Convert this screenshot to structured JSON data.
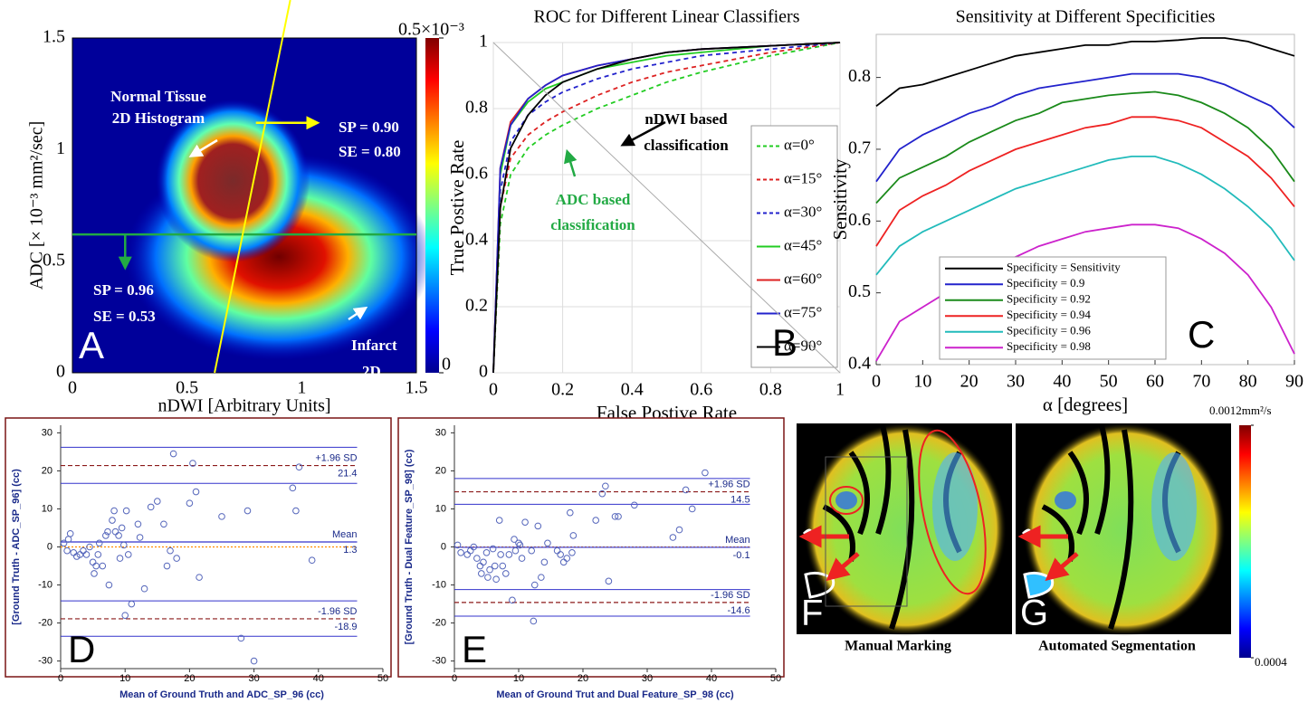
{
  "chart_data": [
    {
      "type": "heatmap",
      "panel_label": "A",
      "xlabel": "nDWI [Arbitrary Units]",
      "ylabel": "ADC [× 10⁻³ mm²/sec]",
      "xlim": [
        0,
        1.5
      ],
      "xticks": [
        0,
        0.5,
        1,
        1.5
      ],
      "ylim": [
        0,
        1.5
      ],
      "yticks": [
        0,
        0.5,
        1,
        1.5
      ],
      "colorbar": {
        "lim": [
          0,
          0.0005
        ],
        "ticks": [
          {
            "value": 0,
            "label": "0"
          },
          {
            "value": 0.0005,
            "label": "0.5×10⁻³"
          }
        ]
      },
      "annotations": [
        "Normal Tissue",
        "2D Histogram",
        "SP = 0.90",
        "SE = 0.80",
        "SP = 0.96",
        "SE = 0.53",
        "Infarct",
        "2D"
      ]
    },
    {
      "type": "line",
      "panel_label": "B",
      "title": "ROC for Different Linear Classifiers",
      "xlabel": "False Postive Rate",
      "ylabel": "True Postive Rate",
      "xlim": [
        0,
        1
      ],
      "xticks": [
        0,
        0.2,
        0.4,
        0.6,
        0.8,
        1
      ],
      "ylim": [
        0,
        1
      ],
      "yticks": [
        0,
        0.2,
        0.4,
        0.6,
        0.8,
        1
      ],
      "grid": true,
      "legend": "lower right",
      "annotations": [
        "nDWI based",
        "classification",
        "ADC based",
        "classification"
      ],
      "x": [
        0,
        0.02,
        0.05,
        0.1,
        0.15,
        0.2,
        0.3,
        0.4,
        0.5,
        0.6,
        0.8,
        1
      ],
      "series": [
        {
          "name": "α=0°",
          "color": "#22cc22",
          "dash": true,
          "values": [
            0,
            0.45,
            0.6,
            0.68,
            0.72,
            0.75,
            0.8,
            0.84,
            0.88,
            0.91,
            0.96,
            1
          ]
        },
        {
          "name": "α=15°",
          "color": "#dd2222",
          "dash": true,
          "values": [
            0,
            0.5,
            0.65,
            0.72,
            0.76,
            0.79,
            0.84,
            0.88,
            0.91,
            0.93,
            0.97,
            1
          ]
        },
        {
          "name": "α=30°",
          "color": "#2222cc",
          "dash": true,
          "values": [
            0,
            0.55,
            0.7,
            0.78,
            0.82,
            0.85,
            0.89,
            0.92,
            0.94,
            0.96,
            0.98,
            1
          ]
        },
        {
          "name": "α=45°",
          "color": "#22cc22",
          "dash": false,
          "values": [
            0,
            0.6,
            0.75,
            0.82,
            0.86,
            0.88,
            0.92,
            0.94,
            0.96,
            0.97,
            0.99,
            1
          ]
        },
        {
          "name": "α=60°",
          "color": "#dd2222",
          "dash": false,
          "values": [
            0,
            0.62,
            0.76,
            0.83,
            0.87,
            0.9,
            0.93,
            0.95,
            0.97,
            0.98,
            0.99,
            1
          ]
        },
        {
          "name": "α=75°",
          "color": "#2222cc",
          "dash": false,
          "values": [
            0,
            0.62,
            0.75,
            0.83,
            0.87,
            0.9,
            0.93,
            0.95,
            0.97,
            0.98,
            0.99,
            1
          ]
        },
        {
          "name": "α=90°",
          "color": "#000000",
          "dash": false,
          "values": [
            0,
            0.5,
            0.68,
            0.78,
            0.84,
            0.88,
            0.92,
            0.95,
            0.97,
            0.98,
            0.99,
            1
          ]
        }
      ]
    },
    {
      "type": "line",
      "panel_label": "C",
      "title": "Sensitivity at Different Specificities",
      "xlabel": "α [degrees]",
      "ylabel": "Sensitivity",
      "xlim": [
        0,
        90
      ],
      "xticks": [
        0,
        10,
        20,
        30,
        40,
        50,
        60,
        70,
        80,
        90
      ],
      "ylim": [
        0.4,
        0.86
      ],
      "yticks": [
        0.4,
        0.5,
        0.6,
        0.7,
        0.8
      ],
      "grid": false,
      "legend": "lower left",
      "x": [
        0,
        5,
        10,
        15,
        20,
        25,
        30,
        35,
        40,
        45,
        50,
        55,
        60,
        65,
        70,
        75,
        80,
        85,
        90
      ],
      "series": [
        {
          "name": "Specificity = Sensitivity",
          "color": "#000000",
          "values": [
            0.76,
            0.785,
            0.79,
            0.8,
            0.81,
            0.82,
            0.83,
            0.835,
            0.84,
            0.845,
            0.845,
            0.85,
            0.85,
            0.852,
            0.855,
            0.855,
            0.85,
            0.84,
            0.83
          ]
        },
        {
          "name": "Specificity = 0.9",
          "color": "#2222cc",
          "values": [
            0.655,
            0.7,
            0.72,
            0.735,
            0.75,
            0.76,
            0.775,
            0.785,
            0.79,
            0.795,
            0.8,
            0.805,
            0.805,
            0.805,
            0.8,
            0.79,
            0.775,
            0.76,
            0.73
          ]
        },
        {
          "name": "Specificity = 0.92",
          "color": "#1a8a1a",
          "values": [
            0.625,
            0.66,
            0.675,
            0.69,
            0.71,
            0.725,
            0.74,
            0.75,
            0.765,
            0.77,
            0.775,
            0.778,
            0.78,
            0.775,
            0.765,
            0.75,
            0.73,
            0.7,
            0.655
          ]
        },
        {
          "name": "Specificity = 0.94",
          "color": "#ee2222",
          "values": [
            0.565,
            0.615,
            0.635,
            0.65,
            0.67,
            0.685,
            0.7,
            0.71,
            0.72,
            0.73,
            0.735,
            0.745,
            0.745,
            0.74,
            0.73,
            0.71,
            0.69,
            0.66,
            0.62
          ]
        },
        {
          "name": "Specificity = 0.96",
          "color": "#22bbbb",
          "values": [
            0.525,
            0.565,
            0.585,
            0.6,
            0.615,
            0.63,
            0.645,
            0.655,
            0.665,
            0.675,
            0.685,
            0.69,
            0.69,
            0.68,
            0.665,
            0.645,
            0.62,
            0.59,
            0.545
          ]
        },
        {
          "name": "Specificity = 0.98",
          "color": "#cc22cc",
          "values": [
            0.405,
            0.46,
            0.48,
            0.5,
            0.52,
            0.535,
            0.55,
            0.565,
            0.575,
            0.585,
            0.59,
            0.595,
            0.595,
            0.59,
            0.575,
            0.555,
            0.525,
            0.48,
            0.415
          ]
        }
      ]
    },
    {
      "type": "scatter",
      "panel_label": "D",
      "xlabel": "Mean of Ground Truth and ADC_SP_96 (cc)",
      "ylabel": "[Ground Truth - ADC_SP_96] (cc)",
      "xlim": [
        0,
        50
      ],
      "xticks": [
        0,
        10,
        20,
        30,
        40,
        50
      ],
      "ylim": [
        -32,
        32
      ],
      "yticks": [
        -30,
        -20,
        -10,
        0,
        10,
        20,
        30
      ],
      "reference_lines": [
        {
          "name": "+1.96 SD",
          "value": 21.4
        },
        {
          "name": "Mean",
          "value": 1.3
        },
        {
          "name": "-1.96 SD",
          "value": -18.9
        }
      ],
      "ci_lines": [
        26.2,
        16.7,
        -14.2,
        -23.5
      ],
      "zero_line": 0,
      "x": [
        0.5,
        1,
        1.2,
        1.5,
        2,
        2.5,
        3,
        3.5,
        4,
        4.5,
        5,
        5.2,
        5.5,
        5.8,
        6,
        6.5,
        7,
        7.3,
        7.5,
        8,
        8.3,
        8.5,
        9,
        9.2,
        9.5,
        9.8,
        10,
        10.2,
        10.5,
        11,
        12,
        12.3,
        13,
        14,
        15,
        16,
        16.5,
        17,
        17.5,
        18,
        20,
        20.5,
        21,
        21.5,
        25,
        28,
        29,
        30,
        36,
        36.5,
        39,
        37
      ],
      "values": [
        1,
        -1,
        2,
        3.5,
        -1.5,
        -2.5,
        -2,
        -1,
        -2,
        0,
        -4,
        -7,
        -5,
        -2,
        1,
        -5,
        3,
        4,
        -10,
        7,
        9.5,
        4,
        3,
        -3,
        5,
        0.5,
        -18,
        9.5,
        -2,
        -15,
        6,
        2.5,
        -11,
        10.5,
        12,
        6,
        -5,
        -1,
        24.5,
        -3,
        11.5,
        22,
        14.5,
        -8,
        8,
        -24,
        9.5,
        -30,
        15.5,
        9.5,
        -3.5,
        21
      ]
    },
    {
      "type": "scatter",
      "panel_label": "E",
      "xlabel": "Mean of Ground Trut and Dual Feature_SP_98 (cc)",
      "ylabel": "[Ground Truth - Dual Feature_SP_98] (cc)",
      "xlim": [
        0,
        50
      ],
      "xticks": [
        0,
        10,
        20,
        30,
        40,
        50
      ],
      "ylim": [
        -32,
        32
      ],
      "yticks": [
        -30,
        -20,
        -10,
        0,
        10,
        20,
        30
      ],
      "reference_lines": [
        {
          "name": "+1.96 SD",
          "value": 14.5
        },
        {
          "name": "Mean",
          "value": -0.1
        },
        {
          "name": "-1.96 SD",
          "value": -14.6
        }
      ],
      "ci_lines": [
        18,
        11.2,
        -11.2,
        -18.2
      ],
      "zero_line": 0,
      "x": [
        0.5,
        1,
        2,
        2.5,
        3,
        3.5,
        4,
        4.2,
        4.5,
        5,
        5.2,
        5.5,
        6,
        6.3,
        6.5,
        7,
        7.2,
        7.5,
        8,
        8.5,
        9,
        9.3,
        9.5,
        10,
        10.2,
        10.5,
        11,
        12,
        12.3,
        12.5,
        13,
        13.5,
        14,
        14.5,
        16,
        16.5,
        17,
        17.5,
        18,
        18.3,
        18.5,
        22,
        23,
        23.5,
        24,
        25,
        25.5,
        28,
        34,
        35,
        36,
        37,
        39
      ],
      "values": [
        0.5,
        -1.5,
        -2,
        -1,
        0,
        -3,
        -5,
        -7,
        -4,
        -1.5,
        -8,
        -6,
        -0.5,
        -5,
        -8.5,
        7,
        -2,
        -5,
        -7,
        -2,
        -14,
        2,
        -1,
        1,
        0.5,
        -3,
        6.5,
        -1,
        -19.5,
        -10,
        5.5,
        -8,
        -4,
        1,
        -1,
        -2,
        -4,
        -3,
        9,
        -1.5,
        3,
        7,
        14,
        16,
        -9,
        8,
        8,
        11,
        2.5,
        4.5,
        15,
        10,
        19.5
      ]
    },
    {
      "type": "image-pair",
      "panels": [
        {
          "label": "F",
          "caption": "Manual Marking"
        },
        {
          "label": "G",
          "caption": "Automated Segmentation"
        }
      ],
      "colorbar": {
        "lim": [
          0.0004,
          0.0012
        ],
        "ticks": [
          {
            "value": 0.0004,
            "label": "0.0004"
          },
          {
            "value": 0.0012,
            "label": "0.0012mm²/s"
          }
        ]
      }
    }
  ]
}
